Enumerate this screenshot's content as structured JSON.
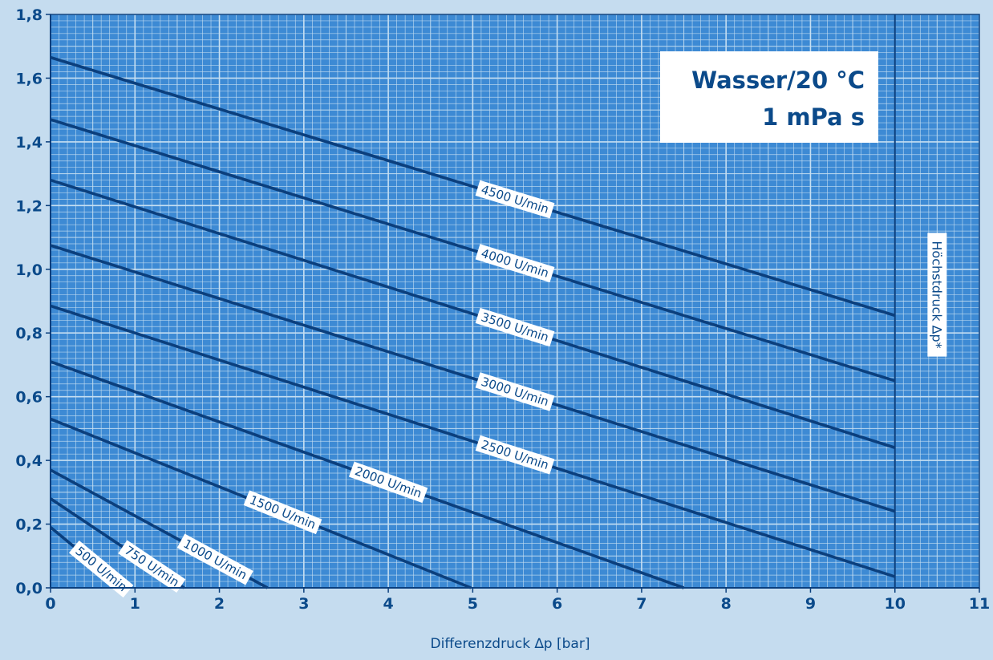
{
  "chart_data": {
    "type": "line",
    "xlabel": "Differenzdruck ∆p [bar]",
    "ylabel": "",
    "xlim": [
      0,
      11
    ],
    "ylim": [
      0,
      1.8
    ],
    "x_ticks": [
      "0",
      "1",
      "2",
      "3",
      "4",
      "5",
      "6",
      "7",
      "8",
      "9",
      "10",
      "11"
    ],
    "y_ticks": [
      "0,0",
      "0,2",
      "0,4",
      "0,6",
      "0,8",
      "1,0",
      "1,2",
      "1,4",
      "1,6",
      "1,8"
    ],
    "grid": true,
    "max_pressure_x": 10,
    "max_pressure_label": "Höchstdruck ∆p*",
    "info_box": {
      "line1": "Wasser/20 °C",
      "line2": "1 mPa s"
    },
    "series": [
      {
        "name": "500 U/min",
        "points": [
          [
            0,
            0.19
          ],
          [
            0.87,
            0.0
          ]
        ]
      },
      {
        "name": "750 U/min",
        "points": [
          [
            0,
            0.28
          ],
          [
            1.58,
            0.0
          ]
        ]
      },
      {
        "name": "1000 U/min",
        "points": [
          [
            0,
            0.37
          ],
          [
            2.57,
            0.0
          ]
        ]
      },
      {
        "name": "1500 U/min",
        "points": [
          [
            0,
            0.53
          ],
          [
            4.98,
            0.0
          ]
        ]
      },
      {
        "name": "2000 U/min",
        "points": [
          [
            0,
            0.71
          ],
          [
            7.5,
            0.0
          ]
        ]
      },
      {
        "name": "2500 U/min",
        "points": [
          [
            0,
            0.885
          ],
          [
            10,
            0.035
          ]
        ]
      },
      {
        "name": "3000 U/min",
        "points": [
          [
            0,
            1.075
          ],
          [
            10,
            0.24
          ]
        ]
      },
      {
        "name": "3500 U/min",
        "points": [
          [
            0,
            1.28
          ],
          [
            10,
            0.44
          ]
        ]
      },
      {
        "name": "4000 U/min",
        "points": [
          [
            0,
            1.47
          ],
          [
            10,
            0.65
          ]
        ]
      },
      {
        "name": "4500 U/min",
        "points": [
          [
            0,
            1.665
          ],
          [
            10,
            0.855
          ]
        ]
      }
    ],
    "label_positions": [
      0.6,
      1.2,
      1.95,
      2.75,
      4.0,
      5.5,
      5.5,
      5.5,
      5.5,
      5.5
    ]
  },
  "colors": {
    "line": "#0b3f7d",
    "text": "#0b4a8a",
    "plot_bg": "#3d8ad4",
    "grid": "#c6dff2",
    "page_bg": "#c5dcef"
  }
}
